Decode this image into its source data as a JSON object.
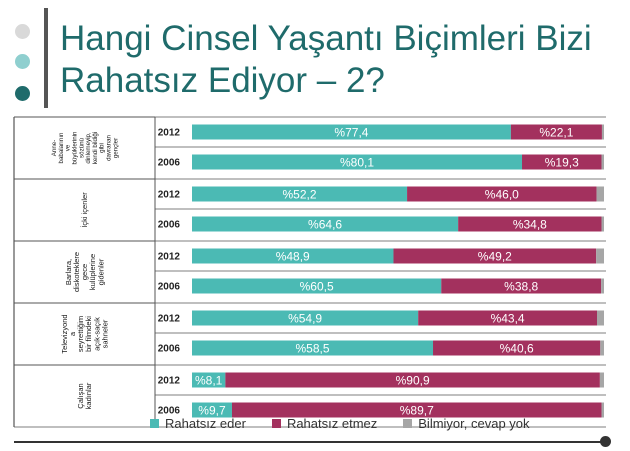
{
  "title_line1": "Hangi Cinsel Yaşantı Biçimleri Bizi",
  "title_line2": "Rahatsız Ediyor – 2?",
  "colors": {
    "title": "#1f6b6b",
    "dot1": "#d9d9d9",
    "dot2": "#8fcfcf",
    "dot3": "#1f6b6b",
    "rahatsiz_eder": "#4bbab4",
    "rahatsiz_etmez": "#a3315e",
    "bilmiyor": "#a6a6a6"
  },
  "chart_data": {
    "type": "bar",
    "stacked": true,
    "orientation": "horizontal",
    "groups": [
      {
        "label": "Anne-babalarının ve büyüklerinin sözünü dinlemeyip, kendi bildiği gibi davranan gençler",
        "label_lines": [
          "Anne-",
          "babalarının",
          "ve",
          "büyüklerinin",
          "sözünü",
          "dinlemeyip,",
          "kendi bildiği",
          "gibi",
          "davranan",
          "gençler"
        ],
        "rows": [
          {
            "year": "2012",
            "values": [
              77.4,
              22.1,
              0.5
            ],
            "labels": [
              "%77,4",
              "%22,1",
              ""
            ]
          },
          {
            "year": "2006",
            "values": [
              80.1,
              19.3,
              0.6
            ],
            "labels": [
              "%80,1",
              "%19,3",
              ""
            ]
          }
        ]
      },
      {
        "label": "İçki içenler",
        "label_lines": [
          "İçki içenler"
        ],
        "rows": [
          {
            "year": "2012",
            "values": [
              52.2,
              46.0,
              1.8
            ],
            "labels": [
              "%52,2",
              "%46,0",
              ""
            ]
          },
          {
            "year": "2006",
            "values": [
              64.6,
              34.8,
              0.6
            ],
            "labels": [
              "%64,6",
              "%34,8",
              ""
            ]
          }
        ]
      },
      {
        "label": "Barlara, diskoteklere gece kulüplerine gidenler",
        "label_lines": [
          "Barlara,",
          "diskoteklere",
          "gece",
          "kulüplerine",
          "gidenler"
        ],
        "rows": [
          {
            "year": "2012",
            "values": [
              48.9,
              49.2,
              1.9
            ],
            "labels": [
              "%48,9",
              "%49,2",
              ""
            ]
          },
          {
            "year": "2006",
            "values": [
              60.5,
              38.8,
              0.7
            ],
            "labels": [
              "%60,5",
              "%38,8",
              ""
            ]
          }
        ]
      },
      {
        "label": "Televizyonda seyrettiğim bir filmdeki açık-saçık sahneler",
        "label_lines": [
          "Televizyond",
          "a",
          "seyrettiğim",
          "bir filmdeki",
          "açık-saçık",
          "sahneler"
        ],
        "rows": [
          {
            "year": "2012",
            "values": [
              54.9,
              43.4,
              1.7
            ],
            "labels": [
              "%54,9",
              "%43,4",
              ""
            ]
          },
          {
            "year": "2006",
            "values": [
              58.5,
              40.6,
              0.9
            ],
            "labels": [
              "%58,5",
              "%40,6",
              ""
            ]
          }
        ]
      },
      {
        "label": "Çalışan kadınlar",
        "label_lines": [
          "Çalışan",
          "kadınlar"
        ],
        "rows": [
          {
            "year": "2012",
            "values": [
              8.1,
              90.9,
              1.0
            ],
            "labels": [
              "%8,1",
              "%90,9",
              ""
            ]
          },
          {
            "year": "2006",
            "values": [
              9.7,
              89.7,
              0.6
            ],
            "labels": [
              "%9,7",
              "%89,7",
              ""
            ]
          }
        ]
      }
    ],
    "series": [
      {
        "name": "Rahatsız eder"
      },
      {
        "name": "Rahatsız etmez"
      },
      {
        "name": "Bilmiyor, cevap yok"
      }
    ],
    "xlim": [
      0,
      100
    ],
    "legend_position": "bottom"
  }
}
